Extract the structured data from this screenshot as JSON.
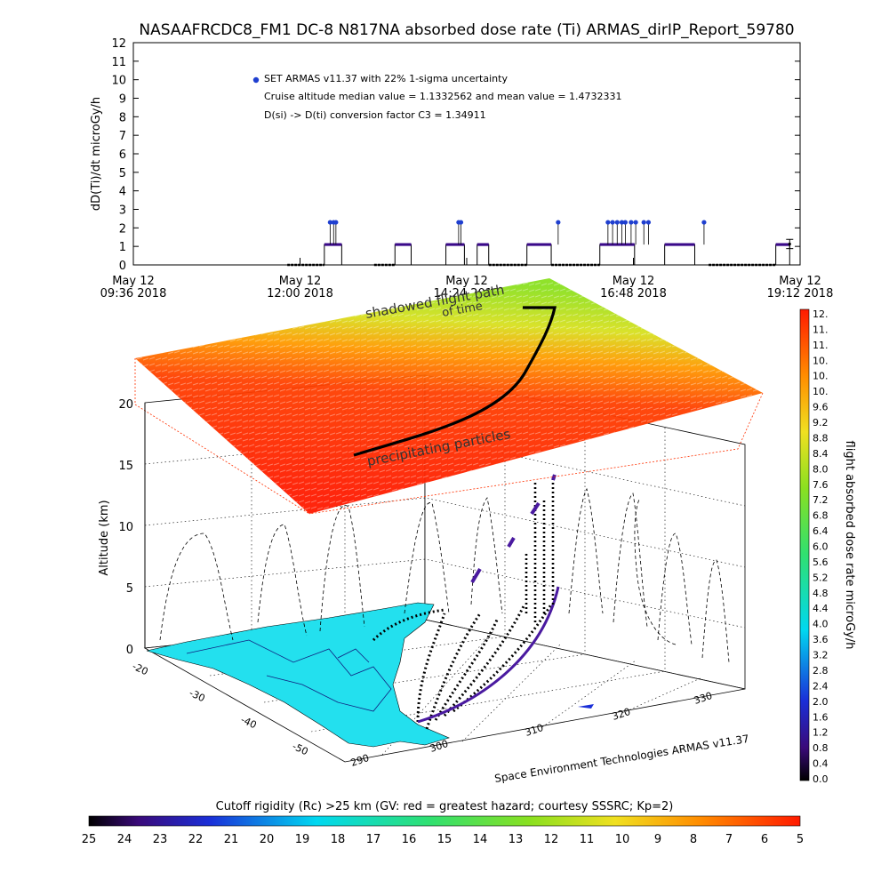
{
  "title": "NASAAFRCDC8_FM1 DC-8   N817NA absorbed dose rate (Ti) ARMAS_dirIP_Report_59780",
  "chart_data": [
    {
      "type": "scatter",
      "ylabel": "dD(Ti)/dt microGy/h",
      "ylim": [
        0,
        12
      ],
      "yticks": [
        "0",
        "1",
        "2",
        "3",
        "4",
        "5",
        "6",
        "7",
        "8",
        "9",
        "10",
        "11",
        "12"
      ],
      "xticks": [
        {
          "t": 0,
          "line1": "May 12",
          "line2": "09:36 2018"
        },
        {
          "t": 144,
          "line1": "May 12",
          "line2": "12:00 2018"
        },
        {
          "t": 288,
          "line1": "May 12",
          "line2": "14:24 2018"
        },
        {
          "t": 432,
          "line1": "May 12",
          "line2": "16:48 2018"
        },
        {
          "t": 576,
          "line1": "May 12",
          "line2": "19:12 2018"
        }
      ],
      "xlim_minutes": [
        0,
        576
      ],
      "legend": [
        "SET ARMAS v11.37 with 22% 1-sigma uncertainty",
        "Cruise altitude median value = 1.1332562 and mean value = 1.4732331",
        "D(si) -> D(ti) conversion factor C3 = 1.34911"
      ],
      "error_bar": {
        "t": 567,
        "value": 1.13,
        "sigma": 0.25
      },
      "series": [
        {
          "style": "black-baseline",
          "segments": [
            [
              133,
              165
            ],
            [
              208,
              226
            ],
            [
              307,
              340
            ],
            [
              361,
              403
            ],
            [
              497,
              555
            ]
          ]
        },
        {
          "style": "purple-plateau",
          "value": 1.1,
          "segments": [
            [
              165,
              180
            ],
            [
              226,
              240
            ],
            [
              270,
              286
            ],
            [
              297,
              307
            ],
            [
              340,
              361
            ],
            [
              403,
              433
            ],
            [
              459,
              485
            ],
            [
              555,
              567
            ]
          ]
        },
        {
          "style": "blue-spike",
          "value": 2.3,
          "points": [
            170,
            173,
            175,
            281,
            283,
            367,
            410,
            414,
            418,
            422,
            425,
            430,
            434,
            441,
            445,
            493
          ]
        }
      ]
    },
    {
      "type": "surface3d",
      "zlabel": "Altitude (km)",
      "zticks": [
        "0",
        "5",
        "10",
        "15",
        "20"
      ],
      "lat_ticks": [
        "-20",
        "-30",
        "-40",
        "-50"
      ],
      "lon_ticks": [
        "290",
        "300",
        "310",
        "320",
        "330"
      ],
      "annotations": [
        "shadowed flight path",
        "of time",
        "precipitating particles"
      ]
    }
  ],
  "right_colorbar": {
    "label": "flight absorbed dose rate microGy/h",
    "ticks": [
      "0.0",
      "0.4",
      "0.8",
      "1.2",
      "1.6",
      "2.0",
      "2.4",
      "2.8",
      "3.2",
      "3.6",
      "4.0",
      "4.4",
      "4.8",
      "5.2",
      "5.6",
      "6.0",
      "6.4",
      "6.8",
      "7.2",
      "7.6",
      "8.0",
      "8.4",
      "8.8",
      "9.2",
      "9.6",
      "10.",
      "10.",
      "10.",
      "11.",
      "11.",
      "12."
    ]
  },
  "bottom_colorbar": {
    "label": "Cutoff rigidity (Rc) >25 km (GV: red = greatest hazard; courtesy SSSRC; Kp=2)",
    "ticks": [
      "25",
      "24",
      "23",
      "22",
      "21",
      "20",
      "19",
      "18",
      "17",
      "16",
      "15",
      "14",
      "13",
      "12",
      "11",
      "10",
      "9",
      "8",
      "7",
      "6",
      "5"
    ]
  },
  "credit": "Space Environment Technologies ARMAS v11.37",
  "colors": {
    "baseline": "#000000",
    "plateau": "#3b0a8a",
    "spike": "#1f3fd0",
    "ocean_land": "#23e0ee"
  }
}
